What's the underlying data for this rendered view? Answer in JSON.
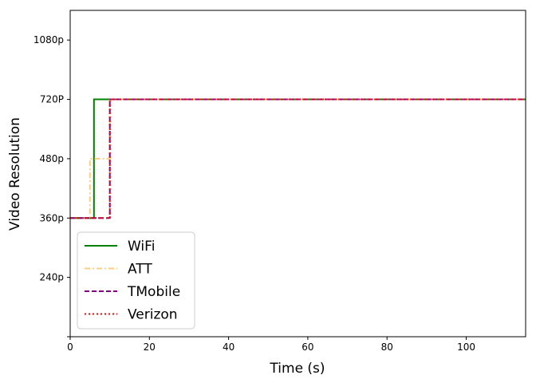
{
  "chart_data": {
    "type": "line",
    "title": "",
    "xlabel": "Time (s)",
    "ylabel": "Video Resolution",
    "xlim": [
      0,
      115
    ],
    "x_ticks": [
      0,
      20,
      40,
      60,
      80,
      100
    ],
    "y_levels": [
      "",
      "240p",
      "360p",
      "480p",
      "720P",
      "1080p"
    ],
    "ylim": [
      0,
      5.5
    ],
    "grid": false,
    "legend_position": "lower-left",
    "series": [
      {
        "name": "WiFi",
        "color": "#008000",
        "style": "solid",
        "points": [
          [
            0,
            2
          ],
          [
            6,
            2
          ],
          [
            6,
            4
          ],
          [
            115,
            4
          ]
        ]
      },
      {
        "name": "ATT",
        "color": "#ffcc80",
        "style": "dashdot",
        "points": [
          [
            0,
            2
          ],
          [
            5,
            2
          ],
          [
            5,
            3
          ],
          [
            10,
            3
          ],
          [
            10,
            4
          ],
          [
            115,
            4
          ]
        ]
      },
      {
        "name": "TMobile",
        "color": "#800080",
        "style": "dashed",
        "points": [
          [
            0,
            2
          ],
          [
            10,
            2
          ],
          [
            10,
            4
          ],
          [
            115,
            4
          ]
        ]
      },
      {
        "name": "Verizon",
        "color": "#ff0000",
        "style": "dotted",
        "points": [
          [
            0,
            2
          ],
          [
            10,
            2
          ],
          [
            10,
            4
          ],
          [
            115,
            4
          ]
        ]
      }
    ]
  }
}
